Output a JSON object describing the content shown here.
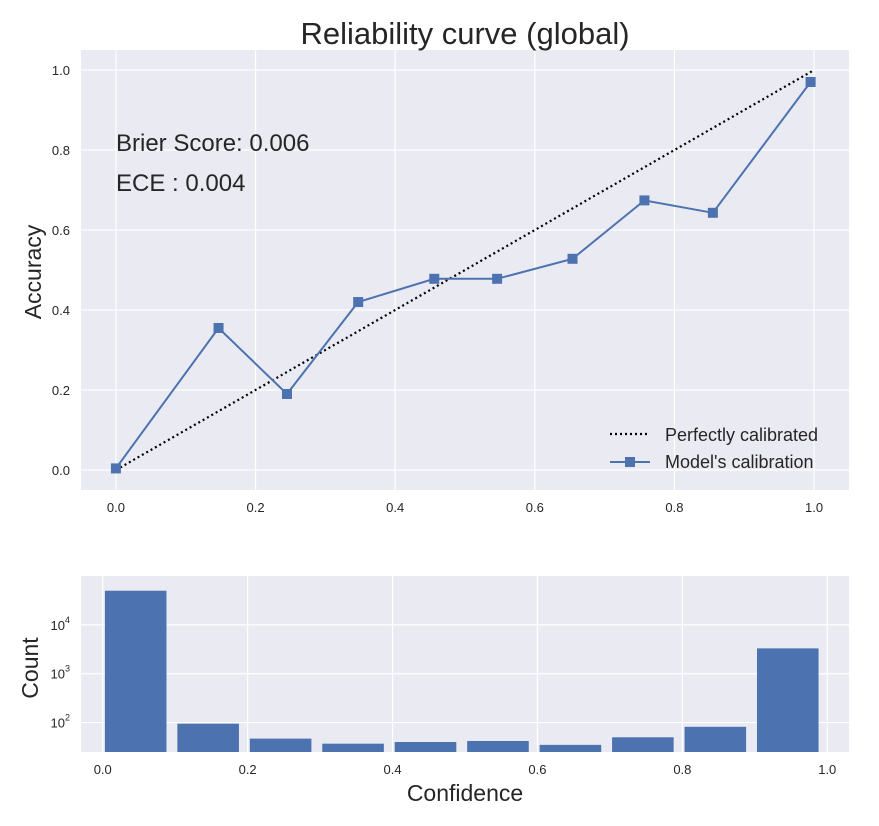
{
  "chart_data": [
    {
      "type": "line",
      "title": "Reliability curve (global)",
      "xlabel": "",
      "ylabel": "Accuracy",
      "xlim": [
        -0.05,
        1.05
      ],
      "ylim": [
        -0.05,
        1.05
      ],
      "xticks": [
        0.0,
        0.2,
        0.4,
        0.6,
        0.8,
        1.0
      ],
      "yticks": [
        0.0,
        0.2,
        0.4,
        0.6,
        0.8,
        1.0
      ],
      "xtick_labels": [
        "0.0",
        "0.2",
        "0.4",
        "0.6",
        "0.8",
        "1.0"
      ],
      "ytick_labels": [
        "0.0",
        "0.2",
        "0.4",
        "0.6",
        "0.8",
        "1.0"
      ],
      "grid": true,
      "legend_position": "lower-right",
      "annotations": [
        "Brier Score: 0.006",
        "ECE : 0.004"
      ],
      "series": [
        {
          "name": "Perfectly calibrated",
          "style": "dotted",
          "color": "#000000",
          "x": [
            0.0,
            1.0
          ],
          "y": [
            0.0,
            1.0
          ]
        },
        {
          "name": "Model's calibration",
          "style": "solid-square-markers",
          "color": "#4c72b0",
          "x": [
            0.0,
            0.147,
            0.245,
            0.347,
            0.456,
            0.546,
            0.654,
            0.757,
            0.855,
            0.995
          ],
          "y": [
            0.004,
            0.355,
            0.19,
            0.42,
            0.478,
            0.478,
            0.528,
            0.674,
            0.643,
            0.97
          ]
        }
      ]
    },
    {
      "type": "bar",
      "title": "",
      "xlabel": "Confidence",
      "ylabel": "Count",
      "yscale": "log",
      "xlim": [
        -0.03,
        1.03
      ],
      "ylim": [
        25,
        100000
      ],
      "xticks": [
        0.0,
        0.2,
        0.4,
        0.6,
        0.8,
        1.0
      ],
      "xtick_labels": [
        "0.0",
        "0.2",
        "0.4",
        "0.6",
        "0.8",
        "1.0"
      ],
      "ytick_labels": [
        {
          "base": "10",
          "exp": "2"
        },
        {
          "base": "10",
          "exp": "3"
        },
        {
          "base": "10",
          "exp": "4"
        }
      ],
      "grid": true,
      "color": "#4c72b0",
      "bin_edges": [
        0.0,
        0.1,
        0.2,
        0.3,
        0.4,
        0.5,
        0.6,
        0.7,
        0.8,
        0.9,
        1.0
      ],
      "values": [
        50000,
        95,
        47,
        37,
        40,
        42,
        35,
        50,
        82,
        3300
      ]
    }
  ],
  "colors": {
    "axes_bg": "#eaeaf2",
    "grid": "#ffffff",
    "accent": "#4c72b0",
    "text": "#262626"
  }
}
